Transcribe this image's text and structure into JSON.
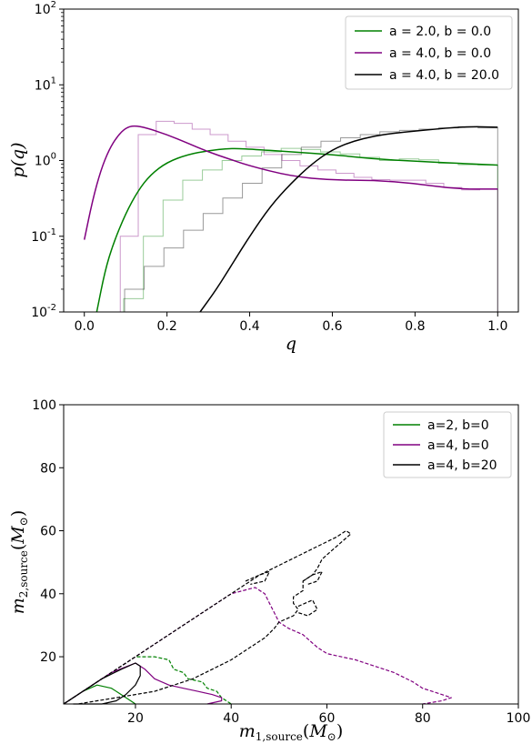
{
  "chart_data": [
    {
      "type": "line",
      "xlabel": "q",
      "ylabel": "p(q)",
      "yscale": "log",
      "xlim": [
        -0.05,
        1.05
      ],
      "ylim": [
        0.01,
        100
      ],
      "x_ticks": [
        "0.0",
        "0.2",
        "0.4",
        "0.6",
        "0.8",
        "1.0"
      ],
      "y_ticks": [
        {
          "base": "10",
          "exp": "-2"
        },
        {
          "base": "10",
          "exp": "-1"
        },
        {
          "base": "10",
          "exp": "0"
        },
        {
          "base": "10",
          "exp": "1"
        },
        {
          "base": "10",
          "exp": "2"
        }
      ],
      "legend_position": "top-right",
      "series": [
        {
          "name": "a = 2.0, b = 0.0",
          "color": "#008000",
          "x": [
            0.03,
            0.05,
            0.07,
            0.1,
            0.13,
            0.16,
            0.2,
            0.25,
            0.3,
            0.35,
            0.4,
            0.5,
            0.6,
            0.7,
            0.8,
            0.9,
            1.0
          ],
          "y": [
            0.01,
            0.035,
            0.08,
            0.2,
            0.4,
            0.65,
            0.95,
            1.2,
            1.35,
            1.45,
            1.42,
            1.3,
            1.2,
            1.05,
            0.98,
            0.92,
            0.87
          ],
          "hist_y": [
            0.01,
            0.01,
            0.015,
            0.1,
            0.3,
            0.55,
            0.75,
            1.0,
            1.15,
            1.3,
            1.45,
            1.4,
            1.3,
            1.22,
            1.1,
            1.0,
            1.05,
            1.02,
            0.92,
            0.88,
            0.87
          ]
        },
        {
          "name": "a = 4.0, b = 0.0",
          "color": "#800080",
          "x": [
            0.0,
            0.02,
            0.04,
            0.06,
            0.08,
            0.1,
            0.12,
            0.15,
            0.2,
            0.25,
            0.3,
            0.35,
            0.4,
            0.5,
            0.6,
            0.7,
            0.8,
            0.9,
            1.0
          ],
          "y": [
            0.09,
            0.3,
            0.75,
            1.4,
            2.1,
            2.7,
            2.9,
            2.7,
            2.2,
            1.7,
            1.3,
            1.05,
            0.85,
            0.62,
            0.55,
            0.55,
            0.5,
            0.42,
            0.42
          ],
          "hist_y": [
            0.01,
            0.01,
            0.1,
            2.2,
            3.3,
            3.1,
            2.6,
            2.2,
            1.8,
            1.5,
            1.2,
            1.0,
            0.85,
            0.75,
            0.68,
            0.6,
            0.56,
            0.55,
            0.55,
            0.5,
            0.44,
            0.41,
            0.42
          ]
        },
        {
          "name": "a = 4.0, b = 20.0",
          "color": "#000000",
          "x": [
            0.28,
            0.32,
            0.36,
            0.4,
            0.45,
            0.5,
            0.55,
            0.6,
            0.65,
            0.7,
            0.75,
            0.8,
            0.85,
            0.9,
            0.95,
            1.0
          ],
          "y": [
            0.01,
            0.02,
            0.045,
            0.1,
            0.25,
            0.5,
            0.9,
            1.4,
            1.8,
            2.1,
            2.3,
            2.45,
            2.6,
            2.75,
            2.8,
            2.75
          ],
          "hist_y": [
            0.01,
            0.02,
            0.04,
            0.07,
            0.12,
            0.2,
            0.32,
            0.5,
            0.8,
            1.2,
            1.5,
            1.8,
            2.0,
            2.2,
            2.4,
            2.5,
            2.6,
            2.7,
            2.8,
            2.7
          ]
        }
      ]
    },
    {
      "type": "line",
      "xlabel": "m1,source(M⊙)",
      "ylabel": "m2,source(M⊙)",
      "xlim": [
        5,
        100
      ],
      "ylim": [
        5,
        100
      ],
      "x_ticks": [
        "20",
        "40",
        "60",
        "80",
        "100"
      ],
      "y_ticks": [
        "20",
        "40",
        "60",
        "80",
        "100"
      ],
      "legend_position": "top-right",
      "series": [
        {
          "name": "a=2, b=0",
          "color": "#008000"
        },
        {
          "name": "a=4, b=0",
          "color": "#800080"
        },
        {
          "name": "a=4, b=20",
          "color": "#000000"
        }
      ],
      "contours": [
        {
          "series": "a=2, b=0",
          "style": "solid",
          "points": [
            [
              5,
              5
            ],
            [
              9,
              9
            ],
            [
              12,
              11
            ],
            [
              15,
              10
            ],
            [
              17,
              8
            ],
            [
              19,
              6
            ],
            [
              20,
              5
            ]
          ]
        },
        {
          "series": "a=2, b=0",
          "style": "dashed",
          "points": [
            [
              5,
              5
            ],
            [
              10,
              10
            ],
            [
              15,
              15
            ],
            [
              20,
              20
            ],
            [
              24,
              20
            ],
            [
              27,
              19
            ],
            [
              28,
              16
            ],
            [
              30,
              15
            ],
            [
              31,
              13
            ],
            [
              34,
              12
            ],
            [
              35,
              10
            ],
            [
              37,
              9
            ],
            [
              38,
              7
            ],
            [
              39,
              6
            ],
            [
              40,
              5
            ]
          ]
        },
        {
          "series": "a=4, b=0",
          "style": "solid",
          "points": [
            [
              5,
              5
            ],
            [
              10,
              10
            ],
            [
              15,
              15
            ],
            [
              20,
              18
            ],
            [
              22,
              16
            ],
            [
              24,
              13
            ],
            [
              27,
              11
            ],
            [
              30,
              10
            ],
            [
              33,
              9
            ],
            [
              36,
              8
            ],
            [
              38,
              7
            ],
            [
              38,
              6
            ],
            [
              35,
              5
            ]
          ]
        },
        {
          "series": "a=4, b=0",
          "style": "dashed",
          "points": [
            [
              5,
              5
            ],
            [
              10,
              10
            ],
            [
              15,
              15
            ],
            [
              20,
              20
            ],
            [
              25,
              25
            ],
            [
              30,
              30
            ],
            [
              35,
              35
            ],
            [
              40,
              40
            ],
            [
              45,
              42
            ],
            [
              47,
              40
            ],
            [
              48,
              37
            ],
            [
              49,
              34
            ],
            [
              50,
              31
            ],
            [
              52,
              29
            ],
            [
              55,
              27
            ],
            [
              58,
              23
            ],
            [
              60,
              21
            ],
            [
              63,
              20
            ],
            [
              66,
              19
            ],
            [
              70,
              17
            ],
            [
              74,
              15
            ],
            [
              78,
              12
            ],
            [
              80,
              10
            ],
            [
              84,
              8
            ],
            [
              86,
              7
            ],
            [
              84,
              6
            ],
            [
              80,
              5
            ]
          ]
        },
        {
          "series": "a=4, b=20",
          "style": "solid",
          "points": [
            [
              5,
              5
            ],
            [
              9,
              9
            ],
            [
              13,
              13
            ],
            [
              17,
              16
            ],
            [
              20,
              18
            ],
            [
              21,
              17
            ],
            [
              21,
              14
            ],
            [
              20,
              11
            ],
            [
              18,
              8
            ],
            [
              16,
              6
            ],
            [
              13,
              5
            ],
            [
              10,
              5
            ],
            [
              7,
              5
            ]
          ]
        },
        {
          "series": "a=4, b=20",
          "style": "dashed",
          "points": [
            [
              5,
              5
            ],
            [
              10,
              10
            ],
            [
              15,
              15
            ],
            [
              20,
              20
            ],
            [
              25,
              25
            ],
            [
              30,
              30
            ],
            [
              35,
              35
            ],
            [
              40,
              40
            ],
            [
              43,
              43
            ],
            [
              46,
              46
            ],
            [
              50,
              49
            ],
            [
              54,
              52
            ],
            [
              58,
              55
            ],
            [
              62,
              58
            ],
            [
              64,
              60
            ],
            [
              65,
              59
            ],
            [
              62,
              55
            ],
            [
              59,
              51
            ],
            [
              58,
              48
            ],
            [
              57,
              46
            ],
            [
              55,
              44
            ],
            [
              55,
              41
            ],
            [
              53,
              39
            ],
            [
              53,
              37
            ],
            [
              54,
              35
            ],
            [
              53,
              33
            ],
            [
              50,
              31
            ],
            [
              49,
              29
            ],
            [
              47,
              26
            ],
            [
              45,
              24
            ],
            [
              43,
              22
            ],
            [
              40,
              19
            ],
            [
              36,
              16
            ],
            [
              32,
              13
            ],
            [
              28,
              11
            ],
            [
              24,
              9
            ],
            [
              20,
              8
            ],
            [
              16,
              7
            ],
            [
              12,
              6
            ],
            [
              8,
              5
            ]
          ]
        },
        {
          "series": "a=4, b=20",
          "style": "dashed",
          "points": [
            [
              43,
              44
            ],
            [
              46,
              46
            ],
            [
              48,
              47
            ],
            [
              47,
              44
            ],
            [
              44,
              43
            ]
          ]
        },
        {
          "series": "a=4, b=20",
          "style": "dashed",
          "points": [
            [
              55,
              44
            ],
            [
              57,
              46
            ],
            [
              59,
              47
            ],
            [
              58,
              44
            ],
            [
              56,
              43
            ]
          ]
        },
        {
          "series": "a=4, b=20",
          "style": "dashed",
          "points": [
            [
              54,
              36
            ],
            [
              57,
              38
            ],
            [
              58,
              35
            ],
            [
              56,
              33
            ],
            [
              54,
              34
            ]
          ]
        }
      ]
    }
  ]
}
